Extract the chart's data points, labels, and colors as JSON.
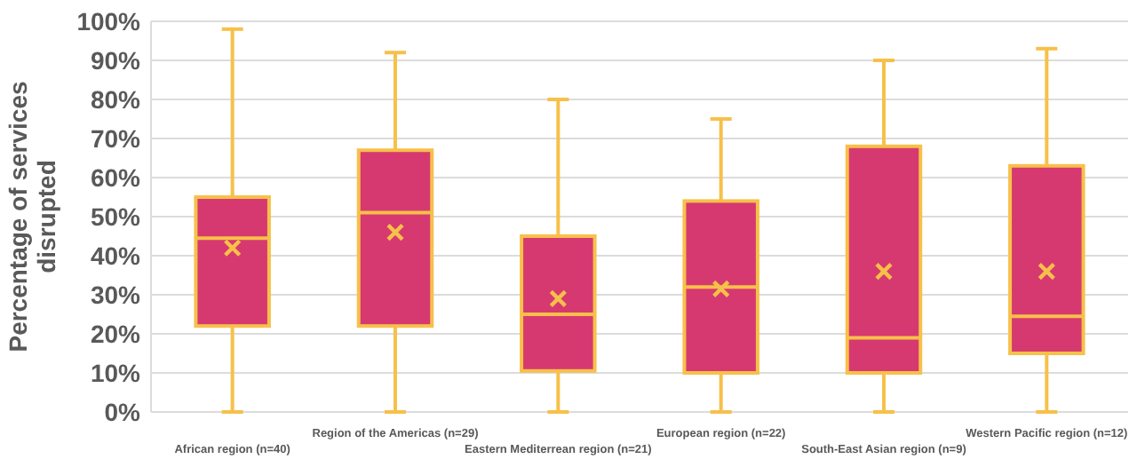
{
  "chart_data": {
    "type": "box",
    "ylabel": "Percentage of services disrupted",
    "categories": [
      "African region (n=40)",
      "Region of the Americas (n=29)",
      "Eastern Mediterrean region (n=21)",
      "European region (n=22)",
      "South-East Asian region (n=9)",
      "Western Pacific region (n=12)"
    ],
    "series": [
      {
        "color": "#d6396f",
        "boxes": [
          {
            "low": 0,
            "q1": 22,
            "median": 44.5,
            "q3": 55,
            "high": 98,
            "mean": 42
          },
          {
            "low": 0,
            "q1": 22,
            "median": 51,
            "q3": 67,
            "high": 92,
            "mean": 46
          },
          {
            "low": 0,
            "q1": 10.5,
            "median": 25,
            "q3": 45,
            "high": 80,
            "mean": 29
          },
          {
            "low": 0,
            "q1": 10,
            "median": 32,
            "q3": 54,
            "high": 75,
            "mean": 31.5
          },
          {
            "low": 0,
            "q1": 10,
            "median": 19,
            "q3": 68,
            "high": 90,
            "mean": 36
          },
          {
            "low": 0,
            "q1": 15,
            "median": 24.5,
            "q3": 63,
            "high": 93,
            "mean": 36
          }
        ]
      }
    ],
    "ylim": [
      0,
      100
    ],
    "yticks": [
      {
        "value": 0,
        "label": "0%"
      },
      {
        "value": 10,
        "label": "10%"
      },
      {
        "value": 20,
        "label": "20%"
      },
      {
        "value": 30,
        "label": "30%"
      },
      {
        "value": 40,
        "label": "40%"
      },
      {
        "value": 50,
        "label": "50%"
      },
      {
        "value": 60,
        "label": "60%"
      },
      {
        "value": 70,
        "label": "70%"
      },
      {
        "value": 80,
        "label": "80%"
      },
      {
        "value": 90,
        "label": "90%"
      },
      {
        "value": 100,
        "label": "100%"
      }
    ],
    "grid": "y",
    "marker": "cross"
  }
}
